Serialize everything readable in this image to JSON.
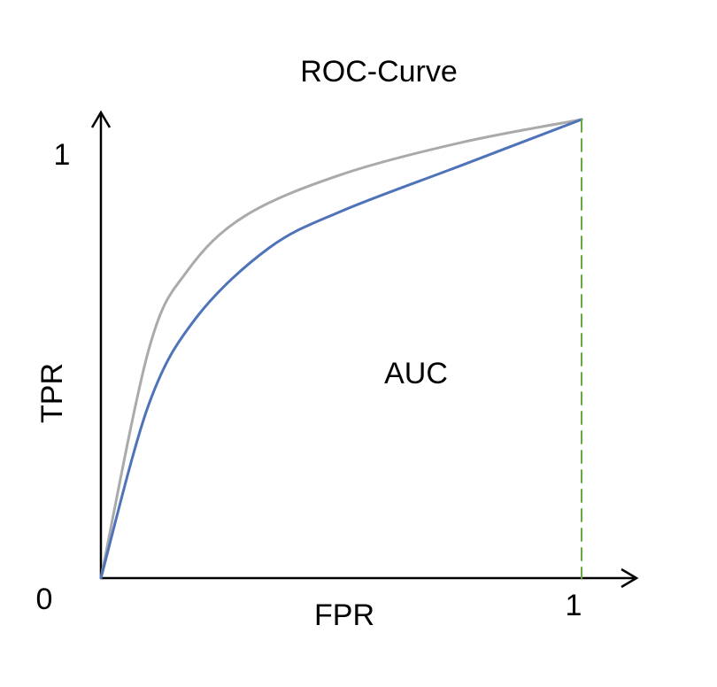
{
  "chart_data": {
    "type": "line",
    "title": "ROC-Curve",
    "xlabel": "FPR",
    "ylabel": "TPR",
    "xlim": [
      0,
      1
    ],
    "ylim": [
      0,
      1
    ],
    "x_ticks": [
      "0",
      "1"
    ],
    "y_ticks": [
      "1"
    ],
    "annotation": "AUC",
    "grid": false,
    "legend": "none",
    "series": [
      {
        "color": "#aaaaaa",
        "style": "solid",
        "points": [
          [
            0,
            0
          ],
          [
            0.1,
            0.5
          ],
          [
            0.18,
            0.67
          ],
          [
            0.3,
            0.79
          ],
          [
            0.5,
            0.88
          ],
          [
            0.75,
            0.95
          ],
          [
            1,
            1
          ]
        ]
      },
      {
        "color": "#4f73b8",
        "style": "solid",
        "points": [
          [
            0,
            0
          ],
          [
            0.1,
            0.38
          ],
          [
            0.2,
            0.57
          ],
          [
            0.35,
            0.72
          ],
          [
            0.5,
            0.8
          ],
          [
            0.75,
            0.9
          ],
          [
            1,
            1
          ]
        ]
      },
      {
        "color": "#66aa44",
        "style": "dashed",
        "points": [
          [
            1,
            1
          ],
          [
            1,
            0
          ]
        ]
      }
    ]
  }
}
